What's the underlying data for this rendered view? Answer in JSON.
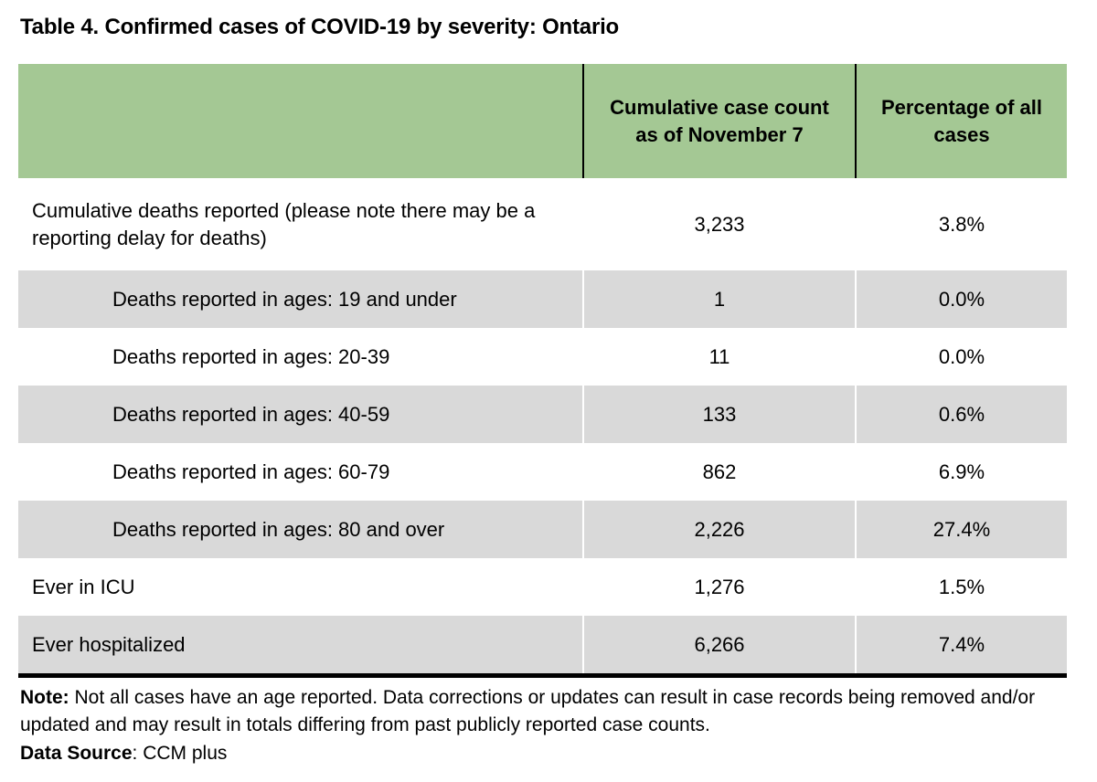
{
  "page": {
    "title": "Table 4. Confirmed cases of COVID-19 by severity: Ontario"
  },
  "table": {
    "header": {
      "col1": "",
      "col2": "Cumulative case count\nas of November 7",
      "col3": "Percentage of all\ncases"
    },
    "rows": [
      {
        "label": "Cumulative deaths reported (please note there may be a reporting delay for deaths)",
        "count": "3,233",
        "pct": "3.8%"
      },
      {
        "label": "Deaths reported in ages: 19 and under",
        "count": "1",
        "pct": "0.0%"
      },
      {
        "label": "Deaths reported in ages: 20-39",
        "count": "11",
        "pct": "0.0%"
      },
      {
        "label": "Deaths reported in ages: 40-59",
        "count": "133",
        "pct": "0.6%"
      },
      {
        "label": "Deaths reported in ages: 60-79",
        "count": "862",
        "pct": "6.9%"
      },
      {
        "label": "Deaths reported in ages: 80 and over",
        "count": "2,226",
        "pct": "27.4%"
      },
      {
        "label": "Ever in ICU",
        "count": "1,276",
        "pct": "1.5%"
      },
      {
        "label": "Ever hospitalized",
        "count": "6,266",
        "pct": "7.4%"
      }
    ]
  },
  "footer": {
    "note_label": "Note:",
    "note_text": " Not all cases have an age reported. Data corrections or updates can result in case records being removed and/or updated and may result in totals differing from past publicly reported case counts.",
    "source_label": "Data Source",
    "source_text": ": CCM plus"
  },
  "colors": {
    "header_green": "#a4c894",
    "row_gray": "#d9d9d9",
    "rule_black": "#000000",
    "background": "#ffffff"
  }
}
